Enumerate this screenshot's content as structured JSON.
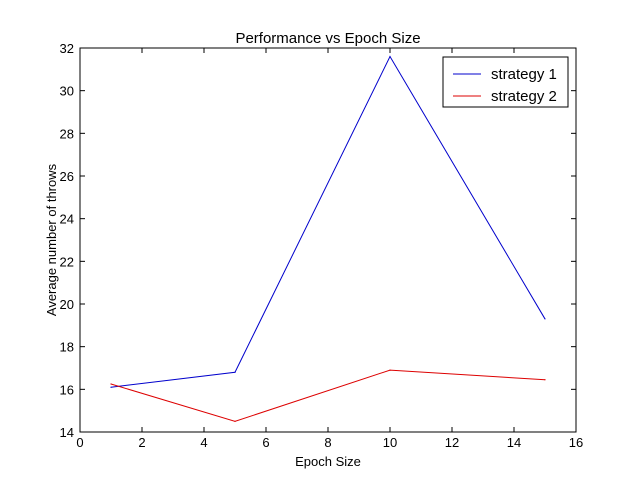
{
  "chart_data": {
    "type": "line",
    "title": "Performance vs Epoch Size",
    "xlabel": "Epoch Size",
    "ylabel": "Average number of throws",
    "xlim": [
      0,
      16
    ],
    "ylim": [
      14,
      32
    ],
    "xticks": [
      0,
      2,
      4,
      6,
      8,
      10,
      12,
      14,
      16
    ],
    "yticks": [
      14,
      16,
      18,
      20,
      22,
      24,
      26,
      28,
      30,
      32
    ],
    "grid": false,
    "legend_position": "top-right",
    "series": [
      {
        "name": "strategy 1",
        "color": "#0000cc",
        "x": [
          1,
          5,
          10,
          15
        ],
        "y": [
          16.1,
          16.8,
          31.6,
          19.3
        ]
      },
      {
        "name": "strategy 2",
        "color": "#dd0000",
        "x": [
          1,
          5,
          10,
          15
        ],
        "y": [
          16.25,
          14.5,
          16.9,
          16.45
        ]
      }
    ]
  }
}
